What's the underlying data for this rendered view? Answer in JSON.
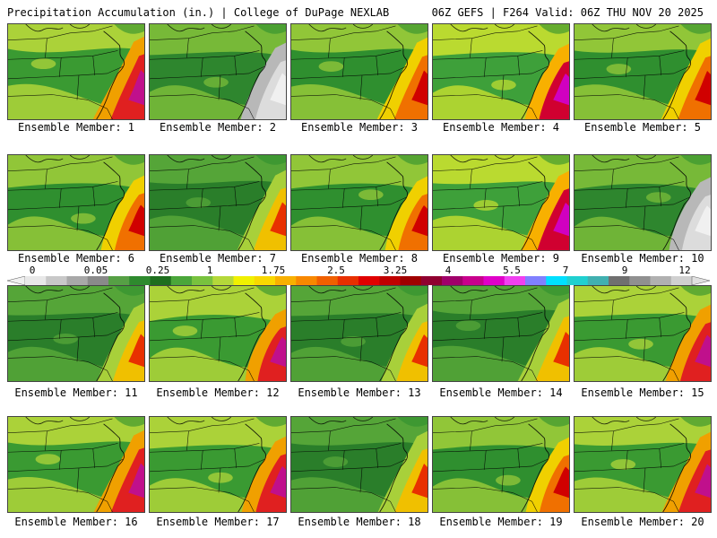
{
  "header": {
    "left": "Precipitation Accumulation (in.) | College of DuPage NEXLAB",
    "right": "06Z GEFS | F264 Valid: 06Z THU NOV 20 2025"
  },
  "members": [
    {
      "label": "Ensemble Member: 1",
      "scheme": "warm"
    },
    {
      "label": "Ensemble Member: 2",
      "scheme": "grey"
    },
    {
      "label": "Ensemble Member: 3",
      "scheme": "mid"
    },
    {
      "label": "Ensemble Member: 4",
      "scheme": "bright"
    },
    {
      "label": "Ensemble Member: 5",
      "scheme": "mid"
    },
    {
      "label": "Ensemble Member: 6",
      "scheme": "mid"
    },
    {
      "label": "Ensemble Member: 7",
      "scheme": "green"
    },
    {
      "label": "Ensemble Member: 8",
      "scheme": "mid"
    },
    {
      "label": "Ensemble Member: 9",
      "scheme": "bright"
    },
    {
      "label": "Ensemble Member: 10",
      "scheme": "grey"
    },
    {
      "label": "Ensemble Member: 11",
      "scheme": "green"
    },
    {
      "label": "Ensemble Member: 12",
      "scheme": "warm"
    },
    {
      "label": "Ensemble Member: 13",
      "scheme": "green"
    },
    {
      "label": "Ensemble Member: 14",
      "scheme": "green"
    },
    {
      "label": "Ensemble Member: 15",
      "scheme": "warm"
    },
    {
      "label": "Ensemble Member: 16",
      "scheme": "warm"
    },
    {
      "label": "Ensemble Member: 17",
      "scheme": "warm"
    },
    {
      "label": "Ensemble Member: 18",
      "scheme": "green"
    },
    {
      "label": "Ensemble Member: 19",
      "scheme": "mid"
    },
    {
      "label": "Ensemble Member: 20",
      "scheme": "warm"
    }
  ],
  "colorbar": {
    "ticks": [
      "0",
      "0.05",
      "0.25",
      "1",
      "1.75",
      "2.5",
      "3.25",
      "4",
      "5.5",
      "7",
      "9",
      "12"
    ],
    "colors": [
      "#e8e8e8",
      "#c8c8c8",
      "#a8a8a8",
      "#8a8a8a",
      "#56a045",
      "#2e8a2e",
      "#1e6e1e",
      "#4aa63a",
      "#78c23e",
      "#b4d83a",
      "#f0f000",
      "#f8d800",
      "#f8b000",
      "#f88800",
      "#f06000",
      "#e83000",
      "#e00000",
      "#c00000",
      "#a00000",
      "#900030",
      "#a0006a",
      "#c8008c",
      "#e000c8",
      "#f040f0",
      "#8080ff",
      "#00e0ff",
      "#20d0d0",
      "#40b0b0",
      "#707070",
      "#909090",
      "#b0b0b0",
      "#d0d0d0"
    ]
  }
}
